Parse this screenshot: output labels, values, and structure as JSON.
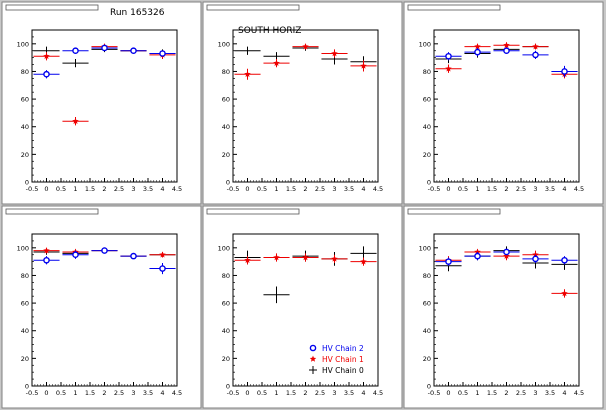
{
  "colors": {
    "chain2": "#0000ee",
    "chain1": "#ee0000",
    "chain0": "#000000"
  },
  "legend": {
    "panel": 4,
    "entries": [
      {
        "label": "HV Chain 2",
        "color": "#0000ee",
        "marker": "open-circle"
      },
      {
        "label": "HV Chain 1",
        "color": "#ee0000",
        "marker": "star"
      },
      {
        "label": "HV Chain 0",
        "color": "#000000",
        "marker": "plus"
      }
    ]
  },
  "chart_data": [
    {
      "type": "scatter",
      "title": "",
      "subtitle": "Run 165326",
      "annotation": "",
      "xlim": [
        -0.5,
        4.5
      ],
      "ylim": [
        0,
        110
      ],
      "xticks": [
        "-0.5",
        "0",
        "0.5",
        "1",
        "1.5",
        "2",
        "2.5",
        "3",
        "3.5",
        "4",
        "4.5"
      ],
      "yticks": [
        "0",
        "20",
        "40",
        "60",
        "80",
        "100"
      ],
      "series": [
        {
          "color": "#000000",
          "marker": "plus",
          "x": [
            0,
            1,
            2,
            3,
            4
          ],
          "y": [
            95,
            86,
            96,
            95,
            93
          ],
          "yerr": [
            3,
            3,
            2,
            2,
            3
          ]
        },
        {
          "color": "#ee0000",
          "marker": "star",
          "x": [
            0,
            1,
            2,
            3,
            4
          ],
          "y": [
            91,
            44,
            98,
            95,
            92
          ],
          "yerr": [
            3,
            3,
            2,
            2,
            3
          ]
        },
        {
          "color": "#0000ee",
          "marker": "open-circle",
          "x": [
            0,
            1,
            2,
            3,
            4
          ],
          "y": [
            78,
            95,
            97,
            95,
            93
          ],
          "yerr": [
            3,
            2,
            2,
            2,
            2
          ]
        }
      ]
    },
    {
      "type": "scatter",
      "title": "",
      "subtitle": "",
      "annotation": "SOUTH HORIZ",
      "xlim": [
        -0.5,
        4.5
      ],
      "ylim": [
        0,
        110
      ],
      "xticks": [
        "-0.5",
        "0",
        "0.5",
        "1",
        "1.5",
        "2",
        "2.5",
        "3",
        "3.5",
        "4",
        "4.5"
      ],
      "yticks": [
        "0",
        "20",
        "40",
        "60",
        "80",
        "100"
      ],
      "series": [
        {
          "color": "#000000",
          "marker": "plus",
          "x": [
            0,
            1,
            2,
            3,
            4
          ],
          "y": [
            95,
            91,
            97,
            89,
            87
          ],
          "yerr": [
            3,
            3,
            2,
            4,
            4
          ]
        },
        {
          "color": "#ee0000",
          "marker": "star",
          "x": [
            0,
            1,
            2,
            3,
            4
          ],
          "y": [
            78,
            86,
            98,
            93,
            84
          ],
          "yerr": [
            4,
            3,
            2,
            3,
            4
          ]
        }
      ]
    },
    {
      "type": "scatter",
      "title": "",
      "subtitle": "",
      "annotation": "",
      "xlim": [
        -0.5,
        4.5
      ],
      "ylim": [
        0,
        110
      ],
      "xticks": [
        "-0.5",
        "0",
        "0.5",
        "1",
        "1.5",
        "2",
        "2.5",
        "3",
        "3.5",
        "4",
        "4.5"
      ],
      "yticks": [
        "0",
        "20",
        "40",
        "60",
        "80",
        "100"
      ],
      "series": [
        {
          "color": "#000000",
          "marker": "plus",
          "x": [
            0,
            1,
            2,
            3,
            4
          ],
          "y": [
            89,
            93,
            96,
            98,
            80
          ],
          "yerr": [
            3,
            3,
            3,
            2,
            3
          ]
        },
        {
          "color": "#ee0000",
          "marker": "star",
          "x": [
            0,
            1,
            2,
            3,
            4
          ],
          "y": [
            82,
            98,
            99,
            98,
            78
          ],
          "yerr": [
            3,
            2,
            2,
            2,
            3
          ]
        },
        {
          "color": "#0000ee",
          "marker": "open-circle",
          "x": [
            0,
            1,
            2,
            3,
            4
          ],
          "y": [
            91,
            94,
            95,
            92,
            80
          ],
          "yerr": [
            3,
            3,
            2,
            3,
            4
          ]
        }
      ]
    },
    {
      "type": "scatter",
      "title": "",
      "subtitle": "",
      "annotation": "",
      "xlim": [
        -0.5,
        4.5
      ],
      "ylim": [
        0,
        110
      ],
      "xticks": [
        "-0.5",
        "0",
        "0.5",
        "1",
        "1.5",
        "2",
        "2.5",
        "3",
        "3.5",
        "4",
        "4.5"
      ],
      "yticks": [
        "0",
        "20",
        "40",
        "60",
        "80",
        "100"
      ],
      "series": [
        {
          "color": "#000000",
          "marker": "plus",
          "x": [
            0,
            1,
            2,
            3,
            4
          ],
          "y": [
            97,
            96,
            98,
            94,
            95
          ],
          "yerr": [
            2,
            2,
            2,
            2,
            2
          ]
        },
        {
          "color": "#ee0000",
          "marker": "star",
          "x": [
            0,
            1,
            2,
            3,
            4
          ],
          "y": [
            98,
            97,
            98,
            94,
            95
          ],
          "yerr": [
            2,
            2,
            2,
            2,
            2
          ]
        },
        {
          "color": "#0000ee",
          "marker": "open-circle",
          "x": [
            0,
            1,
            2,
            3,
            4
          ],
          "y": [
            91,
            95,
            98,
            94,
            85
          ],
          "yerr": [
            3,
            3,
            2,
            2,
            4
          ]
        }
      ]
    },
    {
      "type": "scatter",
      "title": "",
      "subtitle": "",
      "annotation": "",
      "xlim": [
        -0.5,
        4.5
      ],
      "ylim": [
        0,
        110
      ],
      "xticks": [
        "-0.5",
        "0",
        "0.5",
        "1",
        "1.5",
        "2",
        "2.5",
        "3",
        "3.5",
        "4",
        "4.5"
      ],
      "yticks": [
        "0",
        "20",
        "40",
        "60",
        "80",
        "100"
      ],
      "series": [
        {
          "color": "#000000",
          "marker": "plus",
          "x": [
            0,
            1,
            2,
            3,
            4
          ],
          "y": [
            93,
            66,
            94,
            92,
            96
          ],
          "yerr": [
            5,
            6,
            4,
            5,
            5
          ]
        },
        {
          "color": "#ee0000",
          "marker": "star",
          "x": [
            0,
            1,
            2,
            3,
            4
          ],
          "y": [
            91,
            93,
            93,
            92,
            90
          ],
          "yerr": [
            3,
            3,
            3,
            3,
            3
          ]
        }
      ]
    },
    {
      "type": "scatter",
      "title": "",
      "subtitle": "",
      "annotation": "",
      "xlim": [
        -0.5,
        4.5
      ],
      "ylim": [
        0,
        110
      ],
      "xticks": [
        "-0.5",
        "0",
        "0.5",
        "1",
        "1.5",
        "2",
        "2.5",
        "3",
        "3.5",
        "4",
        "4.5"
      ],
      "yticks": [
        "0",
        "20",
        "40",
        "60",
        "80",
        "100"
      ],
      "series": [
        {
          "color": "#000000",
          "marker": "plus",
          "x": [
            0,
            1,
            2,
            3,
            4
          ],
          "y": [
            87,
            94,
            98,
            89,
            88
          ],
          "yerr": [
            4,
            3,
            3,
            4,
            4
          ]
        },
        {
          "color": "#ee0000",
          "marker": "star",
          "x": [
            0,
            1,
            2,
            3,
            4
          ],
          "y": [
            91,
            97,
            94,
            95,
            67
          ],
          "yerr": [
            3,
            2,
            3,
            3,
            3
          ]
        },
        {
          "color": "#0000ee",
          "marker": "open-circle",
          "x": [
            0,
            1,
            2,
            3,
            4
          ],
          "y": [
            90,
            94,
            97,
            92,
            91
          ],
          "yerr": [
            3,
            3,
            2,
            3,
            3
          ]
        }
      ]
    }
  ]
}
